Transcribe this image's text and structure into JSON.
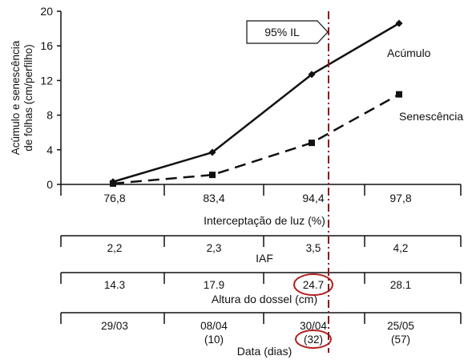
{
  "chart_data": {
    "type": "line",
    "x": [
      "76,8",
      "83,4",
      "94,4",
      "97,8"
    ],
    "xlabel": "Interceptação de luz (%)",
    "ylabel": [
      "Acúmulo e senescência",
      "de folhas (cm/perfilho)"
    ],
    "ylim": [
      0,
      20
    ],
    "yticks": [
      0,
      4,
      8,
      12,
      16,
      20
    ],
    "grid": false,
    "series": [
      {
        "name": "Acúmulo",
        "values": [
          0.3,
          3.7,
          12.7,
          18.6
        ],
        "color": "#111111",
        "line_style": "solid",
        "marker": "diamond"
      },
      {
        "name": "Senescência",
        "values": [
          0.1,
          1.1,
          4.8,
          10.4
        ],
        "color": "#111111",
        "line_style": "dashed",
        "marker": "square"
      }
    ],
    "annotations": [
      {
        "text": "95% IL",
        "type": "vertical-line",
        "x_value": "95",
        "color": "#8b1a1a"
      }
    ]
  },
  "table_rows": [
    {
      "label": "IAF",
      "values": [
        "2,2",
        "2,3",
        "3,5",
        "4,2"
      ]
    },
    {
      "label": "Altura do dossel (cm)",
      "values": [
        "14.3",
        "17.9",
        "24.7",
        "28.1"
      ],
      "highlight_index": 2
    },
    {
      "label": "Data (dias)",
      "values": [
        "29/03",
        "08/04",
        "30/04",
        "25/05"
      ],
      "subvalues": [
        "",
        "(10)",
        "(32)",
        "(57)"
      ],
      "highlight_index": 2
    }
  ],
  "highlight_color": "#b22222"
}
